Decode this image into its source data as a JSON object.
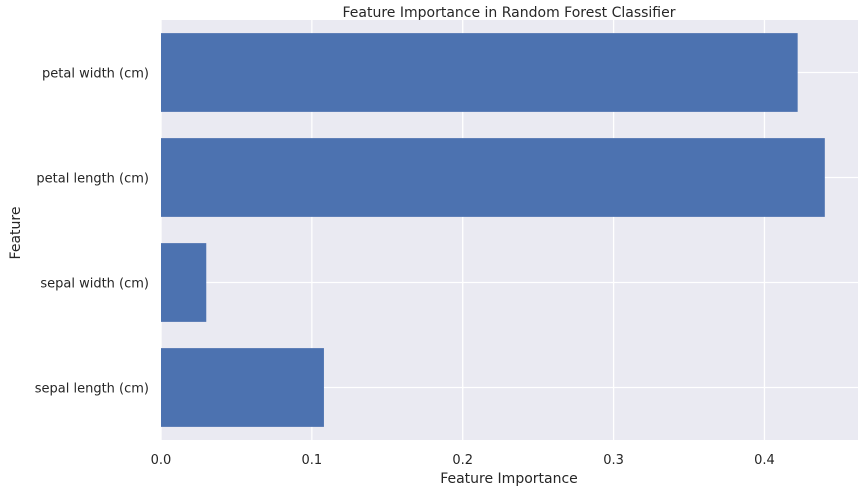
{
  "chart_data": {
    "type": "bar",
    "orientation": "horizontal",
    "title": "Feature Importance in Random Forest Classifier",
    "xlabel": "Feature Importance",
    "ylabel": "Feature",
    "categories": [
      "sepal length (cm)",
      "sepal width (cm)",
      "petal length (cm)",
      "petal width (cm)"
    ],
    "values": [
      0.108,
      0.03,
      0.44,
      0.422
    ],
    "xlim": [
      0,
      0.462
    ],
    "xticks": [
      0.0,
      0.1,
      0.2,
      0.3,
      0.4
    ],
    "xtick_labels": [
      "0.0",
      "0.1",
      "0.2",
      "0.3",
      "0.4"
    ],
    "grid": true,
    "colors": {
      "bar": "#4c72b0",
      "plot_background": "#eaeaf2",
      "grid": "#ffffff",
      "text": "#262626"
    }
  }
}
